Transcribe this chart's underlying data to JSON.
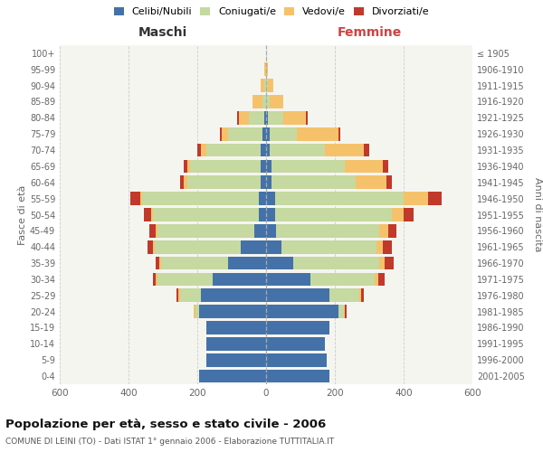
{
  "age_groups": [
    "0-4",
    "5-9",
    "10-14",
    "15-19",
    "20-24",
    "25-29",
    "30-34",
    "35-39",
    "40-44",
    "45-49",
    "50-54",
    "55-59",
    "60-64",
    "65-69",
    "70-74",
    "75-79",
    "80-84",
    "85-89",
    "90-94",
    "95-99",
    "100+"
  ],
  "birth_years": [
    "2001-2005",
    "1996-2000",
    "1991-1995",
    "1986-1990",
    "1981-1985",
    "1976-1980",
    "1971-1975",
    "1966-1970",
    "1961-1965",
    "1956-1960",
    "1951-1955",
    "1946-1950",
    "1941-1945",
    "1936-1940",
    "1931-1935",
    "1926-1930",
    "1921-1925",
    "1916-1920",
    "1911-1915",
    "1906-1910",
    "≤ 1905"
  ],
  "male": {
    "celibi": [
      195,
      175,
      175,
      175,
      195,
      190,
      155,
      110,
      75,
      35,
      20,
      20,
      15,
      15,
      15,
      10,
      5,
      0,
      0,
      0,
      0
    ],
    "coniugati": [
      0,
      0,
      0,
      0,
      10,
      60,
      160,
      195,
      250,
      280,
      310,
      340,
      215,
      205,
      160,
      100,
      45,
      10,
      5,
      0,
      0
    ],
    "vedovi": [
      0,
      0,
      0,
      0,
      5,
      5,
      5,
      5,
      5,
      5,
      5,
      5,
      10,
      10,
      15,
      20,
      30,
      30,
      10,
      5,
      0
    ],
    "divorziati": [
      0,
      0,
      0,
      0,
      0,
      5,
      10,
      10,
      15,
      20,
      20,
      30,
      10,
      10,
      10,
      5,
      5,
      0,
      0,
      0,
      0
    ]
  },
  "female": {
    "nubili": [
      185,
      175,
      170,
      185,
      210,
      185,
      130,
      80,
      45,
      30,
      25,
      25,
      15,
      15,
      10,
      10,
      5,
      0,
      0,
      0,
      0
    ],
    "coniugate": [
      0,
      0,
      0,
      0,
      15,
      85,
      185,
      250,
      275,
      300,
      340,
      375,
      245,
      215,
      160,
      80,
      45,
      10,
      5,
      0,
      0
    ],
    "vedove": [
      0,
      0,
      0,
      0,
      5,
      5,
      10,
      15,
      20,
      25,
      35,
      70,
      90,
      110,
      115,
      120,
      65,
      40,
      15,
      5,
      0
    ],
    "divorziate": [
      0,
      0,
      0,
      0,
      5,
      10,
      20,
      25,
      25,
      25,
      30,
      40,
      15,
      15,
      15,
      5,
      5,
      0,
      0,
      0,
      0
    ]
  },
  "colors": {
    "celibi": "#4472a8",
    "coniugati": "#c5d9a0",
    "vedovi": "#f5c26b",
    "divorziati": "#c0392b"
  },
  "xlim": 600,
  "title": "Popolazione per età, sesso e stato civile - 2006",
  "subtitle": "COMUNE DI LEINI (TO) - Dati ISTAT 1° gennaio 2006 - Elaborazione TUTTITALIA.IT",
  "legend_labels": [
    "Celibi/Nubili",
    "Coniugati/e",
    "Vedovi/e",
    "Divorziati/e"
  ],
  "xlabel_left": "Maschi",
  "xlabel_right": "Femmine",
  "ylabel_left": "Fasce di età",
  "ylabel_right": "Anni di nascita",
  "bg_color": "#f5f5f0",
  "grid_color": "#cccccc"
}
